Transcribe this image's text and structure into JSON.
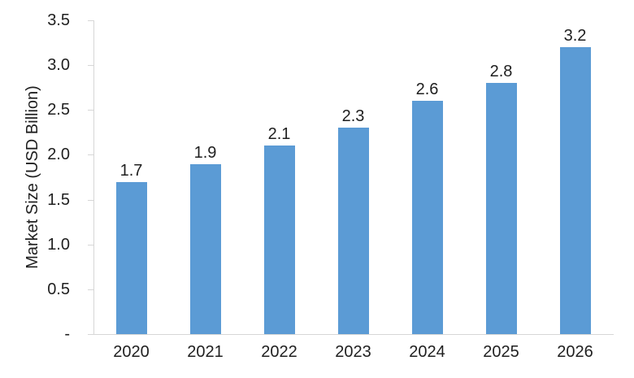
{
  "chart_data": {
    "type": "bar",
    "title": "",
    "xlabel": "",
    "ylabel": "Market Size (USD Billion)",
    "categories": [
      "2020",
      "2021",
      "2022",
      "2023",
      "2024",
      "2025",
      "2026"
    ],
    "values": [
      1.7,
      1.9,
      2.1,
      2.3,
      2.6,
      2.8,
      3.2
    ],
    "bar_labels": [
      "1.7",
      "1.9",
      "2.1",
      "2.3",
      "2.6",
      "2.8",
      "3.2"
    ],
    "ylim": [
      0,
      3.5
    ],
    "ytick_step": 0.5,
    "ytick_labels": [
      "3.5",
      "3.0",
      "2.5",
      "2.0",
      "1.5",
      "1.0",
      "0.5",
      "-"
    ],
    "grid": false,
    "legend": "none",
    "bar_color": "#5b9bd5",
    "axis_color": "#d6d6d6",
    "text_color": "#1f1f1f"
  }
}
